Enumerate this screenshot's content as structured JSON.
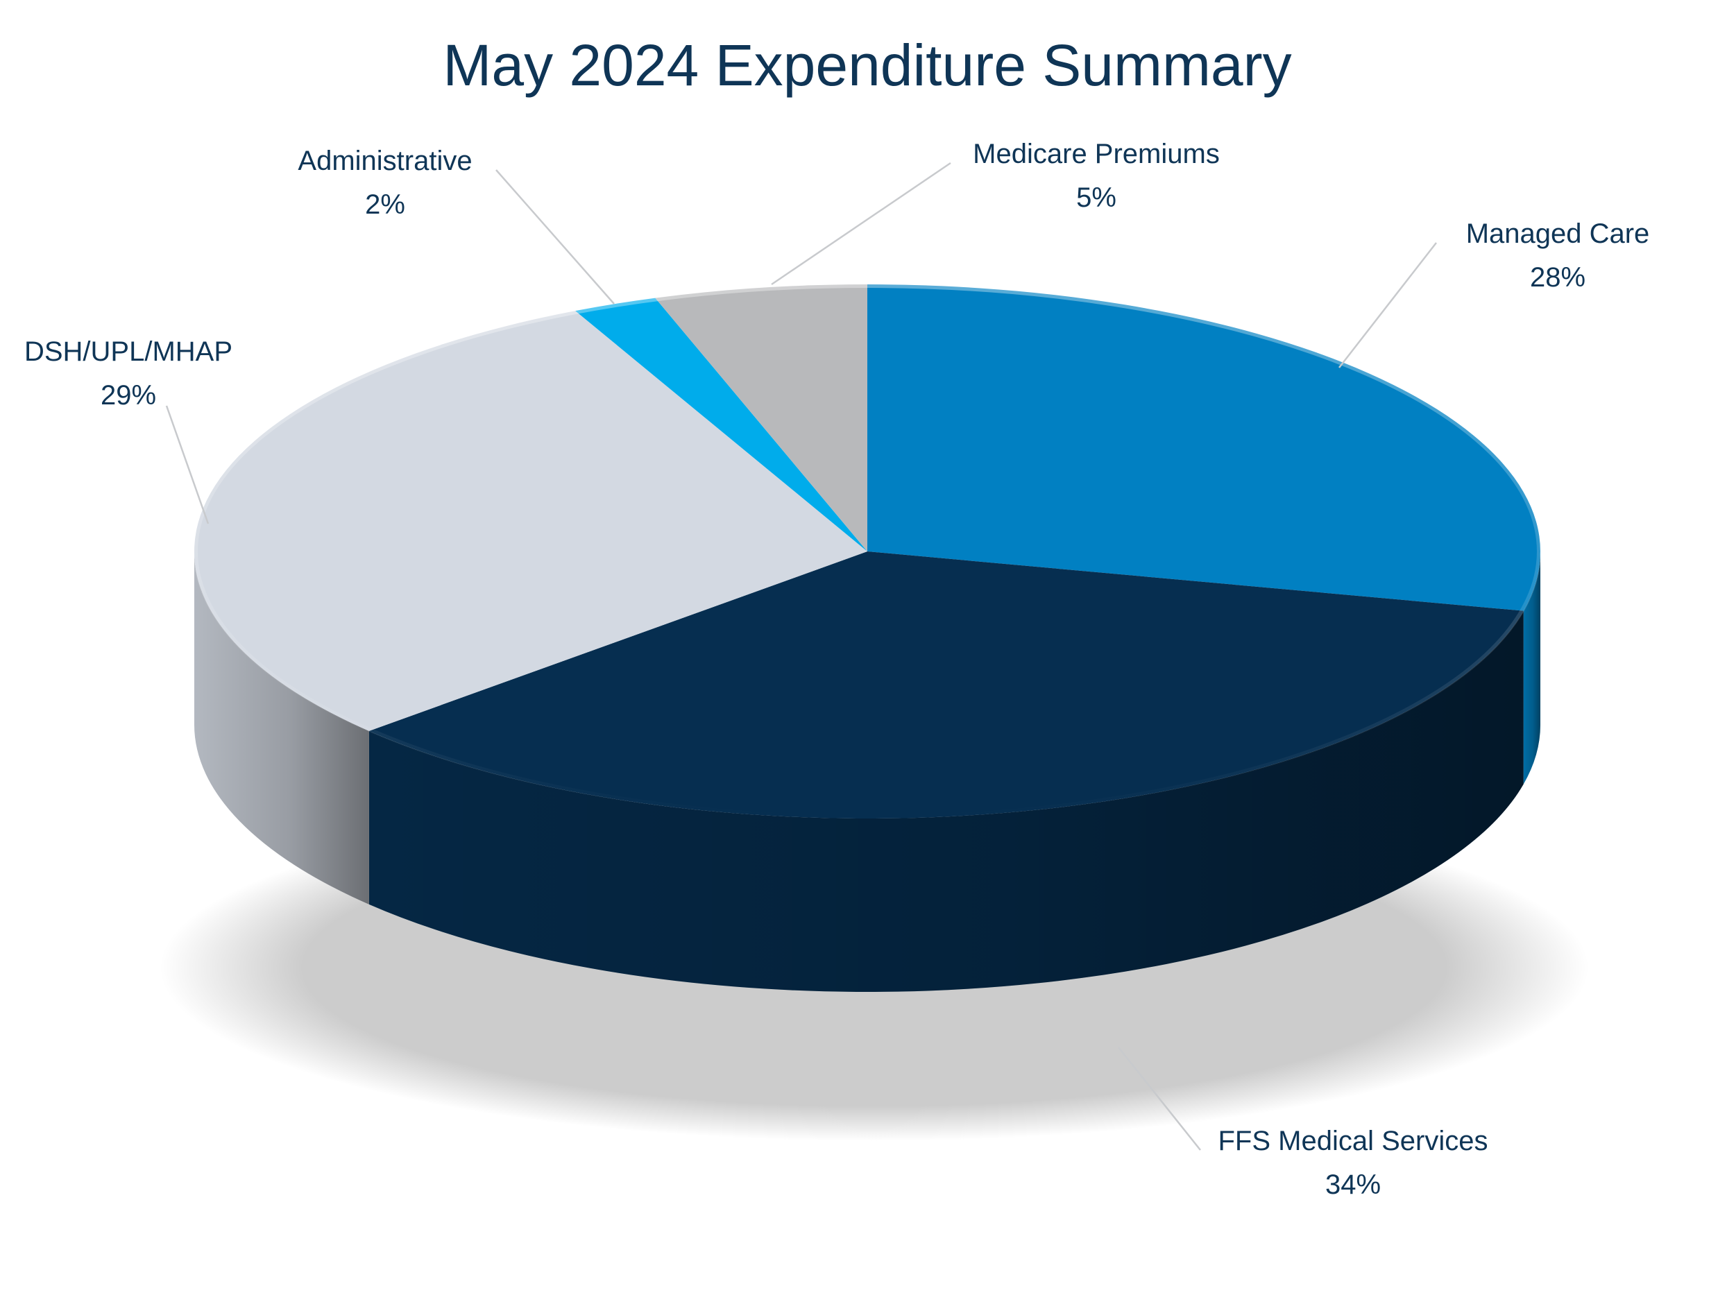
{
  "chart_data": {
    "type": "pie",
    "title": "May 2024 Expenditure Summary",
    "slices": [
      {
        "label": "Managed Care",
        "value": 28,
        "value_label": "28%",
        "color": "#0180c2"
      },
      {
        "label": "FFS Medical Services",
        "value": 34,
        "value_label": "34%",
        "color": "#062e50"
      },
      {
        "label": "DSH/UPL/MHAP",
        "value": 29,
        "value_label": "29%",
        "color": "#d3d9e2"
      },
      {
        "label": "Administrative",
        "value": 2,
        "value_label": "2%",
        "color": "#00aceb"
      },
      {
        "label": "Medicare Premiums",
        "value": 5,
        "value_label": "5%",
        "color": "#b8b9bb"
      }
    ],
    "legend": "none",
    "data_labels": "outside with leader lines"
  }
}
